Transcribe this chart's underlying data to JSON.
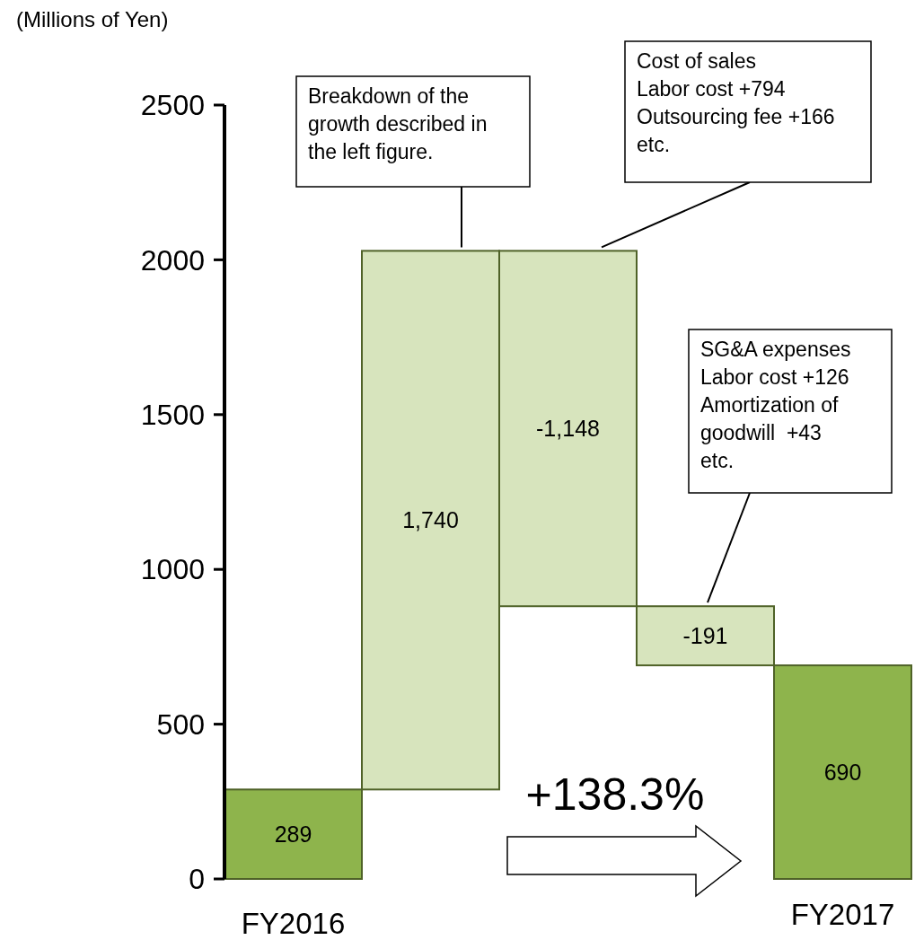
{
  "chart_data": {
    "type": "bar",
    "ylabel": "(Millions of Yen)",
    "categories": [
      "FY2016",
      null,
      null,
      null,
      "FY2017"
    ],
    "values": [
      289,
      1740,
      -1148,
      -191,
      690
    ],
    "base": [
      0,
      289,
      2029,
      881,
      0
    ],
    "colors": [
      "#8eb44c",
      "#d7e4bd",
      "#d7e4bd",
      "#d7e4bd",
      "#8eb44c"
    ],
    "value_labels": [
      "289",
      "1,740",
      "-1,148",
      "-191",
      "690"
    ],
    "ylim": [
      0,
      2500
    ],
    "yticks": [
      0,
      500,
      1000,
      1500,
      2000,
      2500
    ],
    "grid": false,
    "annotations": [
      "Breakdown of the\ngrowth described in\nthe left figure.",
      "Cost of sales\nLabor cost +794\nOutsourcing fee +166\netc.",
      "SG&A expenses\nLabor cost +126\nAmortization of\ngoodwill  +43\netc.",
      "+138.3%"
    ]
  }
}
